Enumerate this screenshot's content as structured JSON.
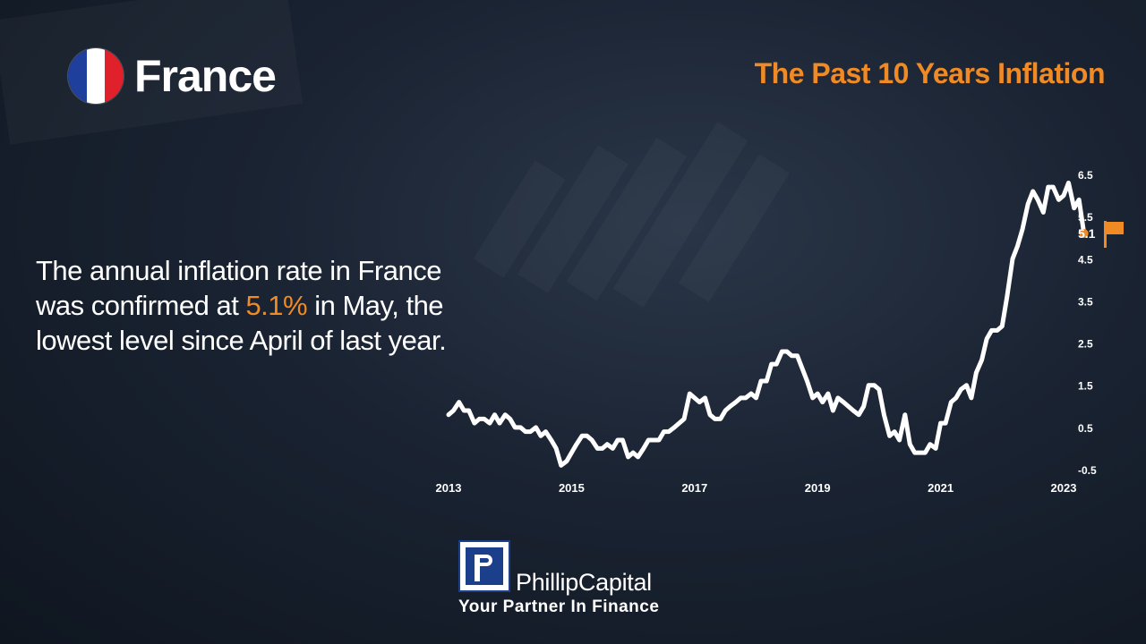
{
  "header": {
    "country": "France",
    "flag_colors": [
      "#1f3f9c",
      "#ffffff",
      "#e0202a"
    ]
  },
  "chart_title": "The Past 10 Years Inflation",
  "summary": {
    "text_before": "The annual inflation rate in France was confirmed at ",
    "highlight": "5.1%",
    "text_after": " in May, the lowest level since April of last year."
  },
  "logo": {
    "name": "PhillipCapital",
    "tagline": "Your Partner In Finance"
  },
  "colors": {
    "accent": "#f08a24",
    "line": "#ffffff",
    "text": "#ffffff"
  },
  "chart_data": {
    "type": "line",
    "title": "The Past 10 Years Inflation",
    "xlabel": "",
    "ylabel": "",
    "x_ticks": [
      "2013",
      "2015",
      "2017",
      "2019",
      "2021",
      "2023"
    ],
    "y_ticks": [
      "6.5",
      "5.5",
      "4.5",
      "3.5",
      "2.5",
      "1.5",
      "0.5",
      "-0.5"
    ],
    "ylim": [
      -0.5,
      6.5
    ],
    "xlim": [
      2013.0,
      2023.0
    ],
    "grid": false,
    "last_value_label": "5.1",
    "last_value_marker": "flag-icon",
    "series": [
      {
        "values": [
          [
            2013.0,
            0.8
          ],
          [
            2013.08,
            0.9
          ],
          [
            2013.17,
            1.1
          ],
          [
            2013.25,
            0.9
          ],
          [
            2013.33,
            0.9
          ],
          [
            2013.42,
            0.6
          ],
          [
            2013.5,
            0.7
          ],
          [
            2013.58,
            0.7
          ],
          [
            2013.67,
            0.6
          ],
          [
            2013.75,
            0.8
          ],
          [
            2013.83,
            0.6
          ],
          [
            2013.92,
            0.8
          ],
          [
            2014.0,
            0.7
          ],
          [
            2014.08,
            0.5
          ],
          [
            2014.17,
            0.5
          ],
          [
            2014.25,
            0.4
          ],
          [
            2014.33,
            0.4
          ],
          [
            2014.42,
            0.5
          ],
          [
            2014.5,
            0.3
          ],
          [
            2014.58,
            0.4
          ],
          [
            2014.67,
            0.2
          ],
          [
            2014.75,
            0.0
          ],
          [
            2014.83,
            -0.4
          ],
          [
            2014.92,
            -0.3
          ],
          [
            2015.0,
            -0.1
          ],
          [
            2015.08,
            0.1
          ],
          [
            2015.17,
            0.3
          ],
          [
            2015.25,
            0.3
          ],
          [
            2015.33,
            0.2
          ],
          [
            2015.42,
            0.0
          ],
          [
            2015.5,
            0.0
          ],
          [
            2015.58,
            0.1
          ],
          [
            2015.67,
            0.0
          ],
          [
            2015.75,
            0.2
          ],
          [
            2015.83,
            0.2
          ],
          [
            2015.92,
            -0.2
          ],
          [
            2016.0,
            -0.1
          ],
          [
            2016.08,
            -0.2
          ],
          [
            2016.17,
            0.0
          ],
          [
            2016.25,
            0.2
          ],
          [
            2016.33,
            0.2
          ],
          [
            2016.42,
            0.2
          ],
          [
            2016.5,
            0.4
          ],
          [
            2016.58,
            0.4
          ],
          [
            2016.67,
            0.5
          ],
          [
            2016.75,
            0.6
          ],
          [
            2016.83,
            0.7
          ],
          [
            2016.92,
            1.3
          ],
          [
            2017.0,
            1.2
          ],
          [
            2017.08,
            1.1
          ],
          [
            2017.17,
            1.2
          ],
          [
            2017.25,
            0.8
          ],
          [
            2017.33,
            0.7
          ],
          [
            2017.42,
            0.7
          ],
          [
            2017.5,
            0.9
          ],
          [
            2017.58,
            1.0
          ],
          [
            2017.67,
            1.1
          ],
          [
            2017.75,
            1.2
          ],
          [
            2017.83,
            1.2
          ],
          [
            2017.92,
            1.3
          ],
          [
            2018.0,
            1.2
          ],
          [
            2018.08,
            1.6
          ],
          [
            2018.17,
            1.6
          ],
          [
            2018.25,
            2.0
          ],
          [
            2018.33,
            2.0
          ],
          [
            2018.42,
            2.3
          ],
          [
            2018.5,
            2.3
          ],
          [
            2018.58,
            2.2
          ],
          [
            2018.67,
            2.2
          ],
          [
            2018.75,
            1.9
          ],
          [
            2018.83,
            1.6
          ],
          [
            2018.92,
            1.2
          ],
          [
            2019.0,
            1.3
          ],
          [
            2019.08,
            1.1
          ],
          [
            2019.17,
            1.3
          ],
          [
            2019.25,
            0.9
          ],
          [
            2019.33,
            1.2
          ],
          [
            2019.42,
            1.1
          ],
          [
            2019.5,
            1.0
          ],
          [
            2019.58,
            0.9
          ],
          [
            2019.67,
            0.8
          ],
          [
            2019.75,
            1.0
          ],
          [
            2019.83,
            1.5
          ],
          [
            2019.92,
            1.5
          ],
          [
            2020.0,
            1.4
          ],
          [
            2020.08,
            0.8
          ],
          [
            2020.17,
            0.3
          ],
          [
            2020.25,
            0.4
          ],
          [
            2020.33,
            0.2
          ],
          [
            2020.42,
            0.8
          ],
          [
            2020.5,
            0.1
          ],
          [
            2020.58,
            -0.1
          ],
          [
            2020.67,
            -0.1
          ],
          [
            2020.75,
            -0.1
          ],
          [
            2020.83,
            0.1
          ],
          [
            2020.92,
            0.0
          ],
          [
            2021.0,
            0.6
          ],
          [
            2021.08,
            0.6
          ],
          [
            2021.17,
            1.1
          ],
          [
            2021.25,
            1.2
          ],
          [
            2021.33,
            1.4
          ],
          [
            2021.42,
            1.5
          ],
          [
            2021.5,
            1.2
          ],
          [
            2021.58,
            1.8
          ],
          [
            2021.67,
            2.1
          ],
          [
            2021.75,
            2.6
          ],
          [
            2021.83,
            2.8
          ],
          [
            2021.92,
            2.8
          ],
          [
            2022.0,
            2.9
          ],
          [
            2022.08,
            3.6
          ],
          [
            2022.17,
            4.5
          ],
          [
            2022.25,
            4.8
          ],
          [
            2022.33,
            5.2
          ],
          [
            2022.42,
            5.8
          ],
          [
            2022.5,
            6.1
          ],
          [
            2022.58,
            5.9
          ],
          [
            2022.67,
            5.6
          ],
          [
            2022.75,
            6.2
          ],
          [
            2022.83,
            6.2
          ],
          [
            2022.92,
            5.9
          ],
          [
            2023.0,
            6.0
          ],
          [
            2023.08,
            6.3
          ],
          [
            2023.17,
            5.7
          ],
          [
            2023.25,
            5.9
          ],
          [
            2023.33,
            5.1
          ]
        ]
      }
    ]
  }
}
